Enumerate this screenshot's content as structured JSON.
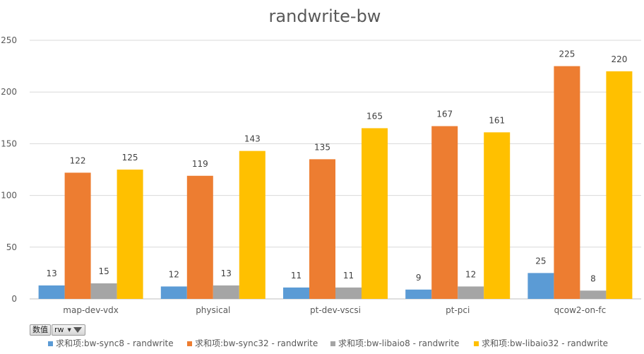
{
  "chart_data": {
    "type": "bar",
    "title": "randwrite-bw",
    "xlabel": "",
    "ylabel": "",
    "ylim": [
      0,
      250
    ],
    "ytick_step": 50,
    "grid": true,
    "legend_position": "bottom",
    "categories": [
      "map-dev-vdx",
      "physical",
      "pt-dev-vscsi",
      "pt-pci",
      "qcow2-on-fc"
    ],
    "series": [
      {
        "name": "求和项:bw-sync8 - randwrite",
        "color": "#5B9BD5",
        "values": [
          13,
          12,
          11,
          9,
          25
        ]
      },
      {
        "name": "求和项:bw-sync32 - randwrite",
        "color": "#ED7D31",
        "values": [
          122,
          119,
          135,
          167,
          225
        ]
      },
      {
        "name": "求和项:bw-libaio8 - randwrite",
        "color": "#A5A5A5",
        "values": [
          15,
          13,
          11,
          12,
          8
        ]
      },
      {
        "name": "求和项:bw-libaio32 - randwrite",
        "color": "#FFC000",
        "values": [
          125,
          143,
          165,
          161,
          220
        ]
      }
    ]
  },
  "field_buttons": {
    "value_label": "数值",
    "rw_label": "rw"
  }
}
